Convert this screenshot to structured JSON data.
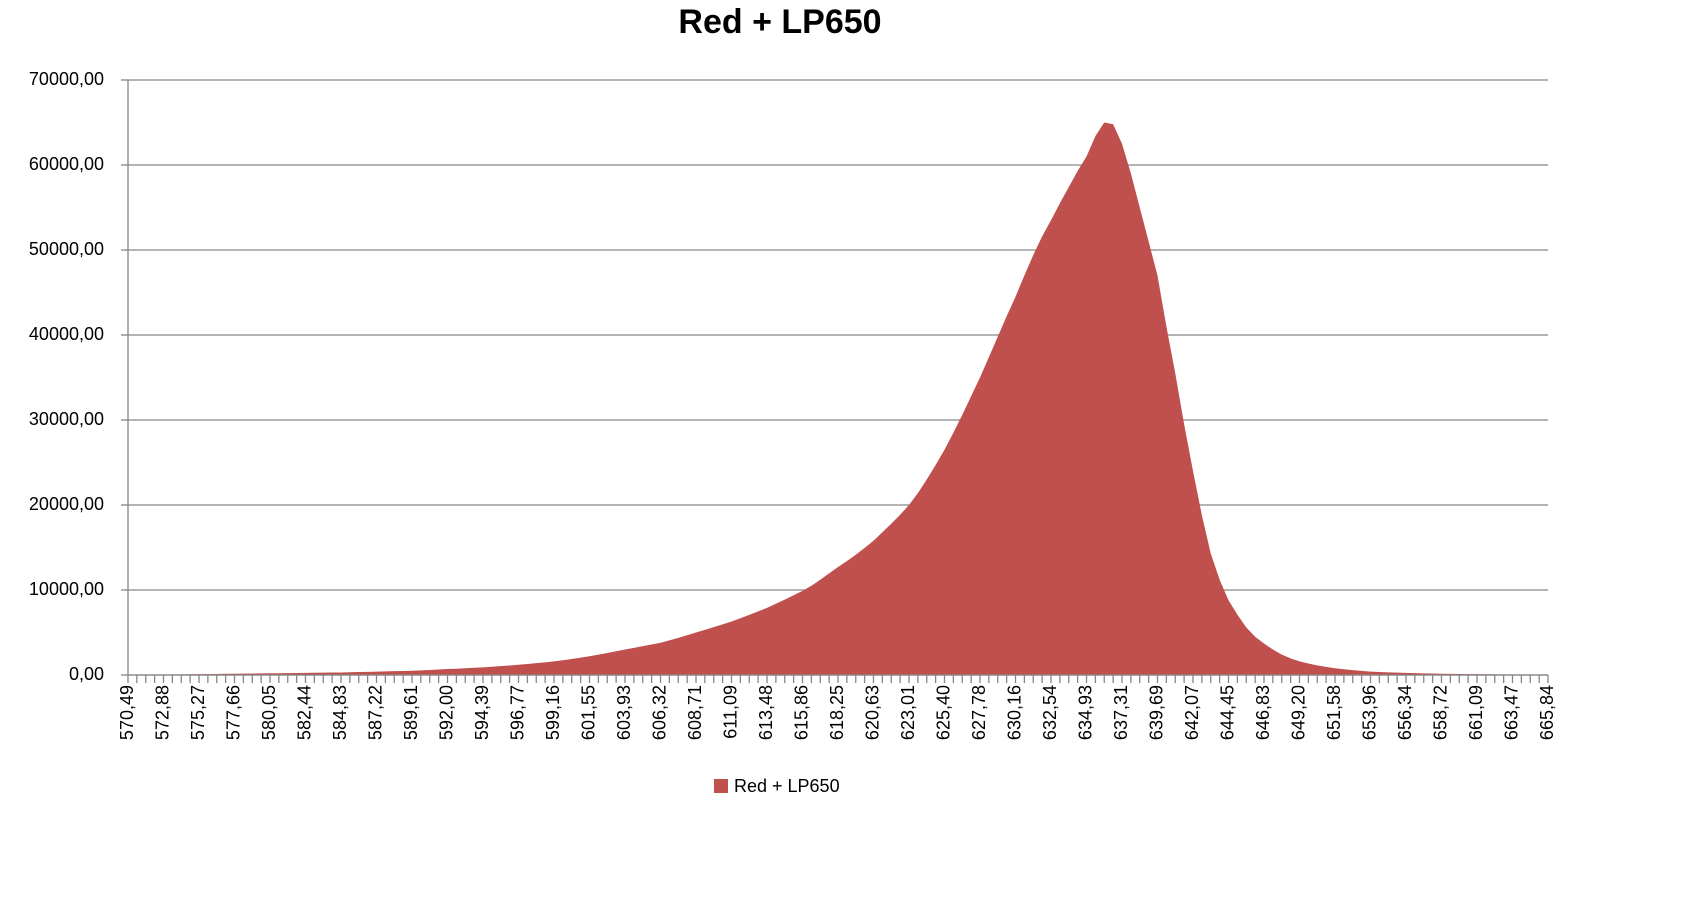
{
  "chart_data": {
    "type": "area",
    "title": "Red + LP650",
    "categories": [
      "570,49",
      null,
      null,
      null,
      "572,88",
      null,
      null,
      null,
      "575,27",
      null,
      null,
      null,
      "577,66",
      null,
      null,
      null,
      "580,05",
      null,
      null,
      null,
      "582,44",
      null,
      null,
      null,
      "584,83",
      null,
      null,
      null,
      "587,22",
      null,
      null,
      null,
      "589,61",
      null,
      null,
      null,
      "592,00",
      null,
      null,
      null,
      "594,39",
      null,
      null,
      null,
      "596,77",
      null,
      null,
      null,
      "599,16",
      null,
      null,
      null,
      "601,55",
      null,
      null,
      null,
      "603,93",
      null,
      null,
      null,
      "606,32",
      null,
      null,
      null,
      "608,71",
      null,
      null,
      null,
      "611,09",
      null,
      null,
      null,
      "613,48",
      null,
      null,
      null,
      "615,86",
      null,
      null,
      null,
      "618,25",
      null,
      null,
      null,
      "620,63",
      null,
      null,
      null,
      "623,01",
      null,
      null,
      null,
      "625,40",
      null,
      null,
      null,
      "627,78",
      null,
      null,
      null,
      "630,16",
      null,
      null,
      null,
      "632,54",
      null,
      null,
      null,
      "634,93",
      null,
      null,
      null,
      "637,31",
      null,
      null,
      null,
      "639,69",
      null,
      null,
      null,
      "642,07",
      null,
      null,
      null,
      "644,45",
      null,
      null,
      null,
      "646,83",
      null,
      null,
      null,
      "649,20",
      null,
      null,
      null,
      "651,58",
      null,
      null,
      null,
      "653,96",
      null,
      null,
      null,
      "656,34",
      null,
      null,
      null,
      "658,72",
      null,
      null,
      null,
      "661,09",
      null,
      null,
      null,
      "663,47",
      null,
      null,
      null,
      "665,84"
    ],
    "series": [
      {
        "name": "Red + LP650",
        "color": "#c0504d",
        "values": [
          0,
          10,
          25,
          40,
          50,
          60,
          75,
          90,
          100,
          110,
          125,
          140,
          150,
          160,
          175,
          190,
          200,
          210,
          225,
          240,
          250,
          260,
          275,
          290,
          300,
          320,
          350,
          375,
          400,
          420,
          450,
          475,
          500,
          540,
          590,
          640,
          700,
          740,
          790,
          850,
          900,
          970,
          1050,
          1120,
          1200,
          1290,
          1390,
          1490,
          1600,
          1740,
          1880,
          2040,
          2200,
          2390,
          2590,
          2790,
          3000,
          3190,
          3390,
          3590,
          3800,
          4080,
          4370,
          4680,
          5000,
          5310,
          5630,
          5960,
          6300,
          6680,
          7070,
          7480,
          7900,
          8380,
          8870,
          9380,
          9900,
          10500,
          11200,
          11950,
          12700,
          13400,
          14150,
          14950,
          15800,
          16800,
          17800,
          18850,
          20000,
          21400,
          23000,
          24700,
          26500,
          28500,
          30600,
          32800,
          35000,
          37400,
          39800,
          42200,
          44500,
          47000,
          49400,
          51600,
          53500,
          55500,
          57400,
          59300,
          61000,
          63400,
          65000,
          64800,
          62500,
          59000,
          55000,
          51000,
          47000,
          41000,
          35500,
          29500,
          24000,
          18800,
          14300,
          11200,
          8800,
          7100,
          5600,
          4500,
          3700,
          3000,
          2400,
          1950,
          1600,
          1350,
          1130,
          950,
          800,
          680,
          570,
          480,
          400,
          350,
          310,
          280,
          250,
          220,
          195,
          170,
          150,
          135,
          120,
          110,
          100,
          85,
          70,
          60,
          50,
          45,
          40,
          35,
          30
        ]
      }
    ],
    "ylim": [
      0,
      70000
    ],
    "yticks": [
      {
        "value": 0,
        "label": "0,00"
      },
      {
        "value": 10000,
        "label": "10000,00"
      },
      {
        "value": 20000,
        "label": "20000,00"
      },
      {
        "value": 30000,
        "label": "30000,00"
      },
      {
        "value": 40000,
        "label": "40000,00"
      },
      {
        "value": 50000,
        "label": "50000,00"
      },
      {
        "value": 60000,
        "label": "60000,00"
      },
      {
        "value": 70000,
        "label": "70000,00"
      }
    ],
    "grid": true,
    "legend": "bottom"
  }
}
